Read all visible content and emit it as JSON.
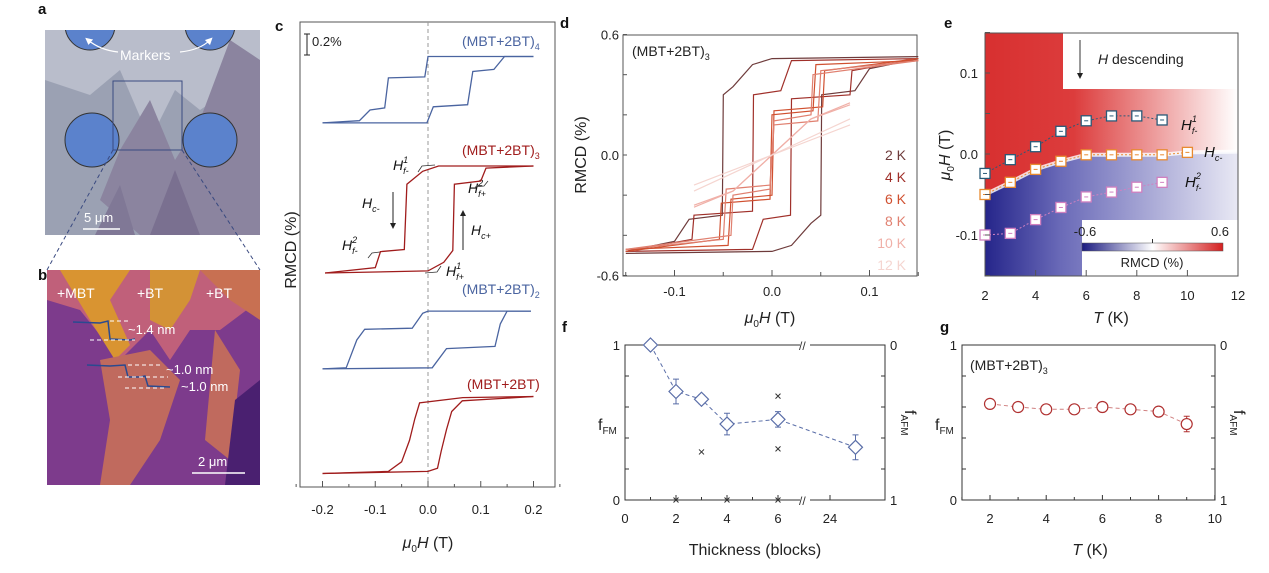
{
  "panels": {
    "a": {
      "letter": "a",
      "markers_label": "Markers",
      "scale_bar": "5 μm",
      "colors": {
        "substrate": "#9ba1b3",
        "marker": "#5b82cc"
      }
    },
    "b": {
      "letter": "b",
      "regions": [
        "+MBT",
        "+BT",
        "+BT"
      ],
      "steps": [
        "~1.4 nm",
        "~1.0 nm",
        "~1.0 nm"
      ],
      "scale_bar": "2 μm",
      "colors": {
        "low": "#7d3b8c",
        "high": "#d99431"
      }
    },
    "c": {
      "letter": "c"
    },
    "d": {
      "letter": "d"
    },
    "e": {
      "letter": "e"
    },
    "f": {
      "letter": "f"
    },
    "g": {
      "letter": "g"
    }
  },
  "chart_data": [
    {
      "id": "c",
      "type": "line",
      "xlabel_pre": "μ",
      "xlabel_sub": "0",
      "xlabel_post": "H (T)",
      "ylabel": "RMCD (%)",
      "scale_bar": "0.2%",
      "xlim": [
        -0.25,
        0.25
      ],
      "xticks": [
        "-0.2",
        "-0.1",
        "0.0",
        "0.1",
        "0.2"
      ],
      "annotations": {
        "hf1m": "H",
        "hf1m_sup": "1",
        "hf1m_sub": "f-",
        "hf2m": "H",
        "hf2m_sup": "2",
        "hf2m_sub": "f-",
        "hf1p": "H",
        "hf1p_sup": "1",
        "hf1p_sub": "f+",
        "hf2p": "H",
        "hf2p_sup": "2",
        "hf2p_sub": "f+",
        "hcm": "H",
        "hcm_sub": "c-",
        "hcp": "H",
        "hcp_sub": "c+"
      },
      "series": [
        {
          "name": "(MBT+2BT)",
          "subscript": "4",
          "color": "#4a64a0",
          "descending": [
            [
              0.2,
              0.31
            ],
            [
              0.0,
              0.31
            ],
            [
              -0.006,
              0.12
            ],
            [
              -0.075,
              0.11
            ],
            [
              -0.082,
              -0.17
            ],
            [
              -0.11,
              -0.19
            ],
            [
              -0.13,
              -0.29
            ],
            [
              -0.2,
              -0.31
            ]
          ],
          "ascending": [
            [
              -0.2,
              -0.31
            ],
            [
              -0.002,
              -0.31
            ],
            [
              0.01,
              -0.16
            ],
            [
              0.075,
              -0.14
            ],
            [
              0.085,
              0.17
            ],
            [
              0.125,
              0.19
            ],
            [
              0.145,
              0.31
            ],
            [
              0.2,
              0.31
            ]
          ]
        },
        {
          "name": "(MBT+2BT)",
          "subscript": "3",
          "color": "#a01c1c",
          "descending": [
            [
              0.2,
              0.5
            ],
            [
              0.02,
              0.5
            ],
            [
              -0.01,
              0.45
            ],
            [
              -0.04,
              0.33
            ],
            [
              -0.045,
              -0.28
            ],
            [
              -0.09,
              -0.3
            ],
            [
              -0.1,
              -0.45
            ],
            [
              -0.195,
              -0.5
            ]
          ],
          "ascending": [
            [
              -0.195,
              -0.5
            ],
            [
              0.0,
              -0.48
            ],
            [
              0.03,
              -0.4
            ],
            [
              0.047,
              -0.29
            ],
            [
              0.05,
              0.33
            ],
            [
              0.1,
              0.36
            ],
            [
              0.11,
              0.48
            ],
            [
              0.2,
              0.5
            ]
          ]
        },
        {
          "name": "(MBT+2BT)",
          "subscript": "2",
          "color": "#4a64a0",
          "descending": [
            [
              0.195,
              0.27
            ],
            [
              0.0,
              0.27
            ],
            [
              -0.01,
              0.25
            ],
            [
              -0.03,
              0.11
            ],
            [
              -0.12,
              0.1
            ],
            [
              -0.135,
              0.0
            ],
            [
              -0.155,
              -0.26
            ],
            [
              -0.2,
              -0.27
            ]
          ],
          "ascending": [
            [
              -0.2,
              -0.27
            ],
            [
              0.008,
              -0.26
            ],
            [
              0.035,
              -0.08
            ],
            [
              0.127,
              -0.06
            ],
            [
              0.137,
              0.15
            ],
            [
              0.15,
              0.27
            ],
            [
              0.195,
              0.27
            ]
          ]
        },
        {
          "name": "(MBT+2BT)",
          "subscript": "",
          "color": "#a01c1c",
          "descending": [
            [
              0.2,
              0.36
            ],
            [
              0.066,
              0.35
            ],
            [
              -0.016,
              0.3
            ],
            [
              -0.025,
              0.15
            ],
            [
              -0.035,
              -0.05
            ],
            [
              -0.05,
              -0.25
            ],
            [
              -0.075,
              -0.34
            ],
            [
              -0.2,
              -0.36
            ]
          ],
          "ascending": [
            [
              -0.2,
              -0.36
            ],
            [
              0.0,
              -0.34
            ],
            [
              0.018,
              -0.31
            ],
            [
              0.025,
              -0.15
            ],
            [
              0.035,
              0.05
            ],
            [
              0.045,
              0.22
            ],
            [
              0.065,
              0.32
            ],
            [
              0.2,
              0.36
            ]
          ]
        }
      ]
    },
    {
      "id": "d",
      "type": "line",
      "title": "(MBT+2BT)",
      "title_sub": "3",
      "xlabel_pre": "μ",
      "xlabel_sub": "0",
      "xlabel_post": "H (T)",
      "ylabel": "RMCD (%)",
      "xlim": [
        -0.15,
        0.15
      ],
      "ylim": [
        -0.6,
        0.6
      ],
      "xticks": [
        "-0.1",
        "0.0",
        "0.1"
      ],
      "yticks": [
        "0.6",
        "0.0",
        "-0.6"
      ],
      "series": [
        {
          "name": "2 K",
          "color": "#6e3b3b",
          "descending": [
            [
              0.15,
              0.49
            ],
            [
              0.0,
              0.48
            ],
            [
              -0.02,
              0.45
            ],
            [
              -0.04,
              0.34
            ],
            [
              -0.05,
              0.3
            ],
            [
              -0.051,
              -0.3
            ],
            [
              -0.085,
              -0.32
            ],
            [
              -0.1,
              -0.43
            ],
            [
              -0.15,
              -0.48
            ]
          ]
        },
        {
          "name": "4 K",
          "color": "#a0302a",
          "descending": [
            [
              0.15,
              0.48
            ],
            [
              0.02,
              0.47
            ],
            [
              0.009,
              0.32
            ],
            [
              -0.019,
              0.3
            ],
            [
              -0.02,
              -0.28
            ],
            [
              -0.08,
              -0.3
            ],
            [
              -0.082,
              -0.42
            ],
            [
              -0.15,
              -0.48
            ]
          ]
        },
        {
          "name": "6 K",
          "color": "#d05030",
          "descending": [
            [
              0.15,
              0.47
            ],
            [
              0.045,
              0.45
            ],
            [
              0.042,
              0.22
            ],
            [
              0.0,
              0.2
            ],
            [
              -0.002,
              -0.22
            ],
            [
              -0.052,
              -0.24
            ],
            [
              -0.054,
              -0.42
            ],
            [
              -0.15,
              -0.48
            ]
          ]
        },
        {
          "name": "8 K",
          "color": "#e08070",
          "descending": [
            [
              0.15,
              0.47
            ],
            [
              0.05,
              0.42
            ],
            [
              0.047,
              0.17
            ],
            [
              0.002,
              0.15
            ],
            [
              -0.002,
              -0.17
            ],
            [
              -0.04,
              -0.2
            ],
            [
              -0.042,
              -0.4
            ],
            [
              -0.15,
              -0.47
            ]
          ]
        },
        {
          "name": "10 K",
          "color": "#f0b0a8",
          "descending": [
            [
              0.08,
              0.25
            ],
            [
              0.04,
              0.18
            ],
            [
              0.0,
              0.0
            ],
            [
              -0.04,
              -0.18
            ],
            [
              -0.08,
              -0.26
            ]
          ]
        },
        {
          "name": "12 K",
          "color": "#f5d5d0",
          "descending": [
            [
              0.08,
              0.15
            ],
            [
              0.0,
              0.0
            ],
            [
              -0.08,
              -0.18
            ]
          ]
        }
      ]
    },
    {
      "id": "e",
      "type": "heatmap",
      "annotation": "H",
      "annotation_rest": " descending",
      "xlabel": "T",
      "xlabel_unit": " (K)",
      "ylabel_pre": "μ",
      "ylabel_sub": "0",
      "ylabel_post": "H (T)",
      "xlim": [
        2,
        12
      ],
      "ylim": [
        -0.15,
        0.15
      ],
      "xticks": [
        "2",
        "4",
        "6",
        "8",
        "10",
        "12"
      ],
      "yticks": [
        "0.1",
        "0.0",
        "-0.1"
      ],
      "colorbar": {
        "label": "RMCD (%)",
        "min": "-0.6",
        "max": "0.6",
        "colors": [
          "#1a1a80",
          "#ffffff",
          "#d42020"
        ]
      },
      "series": [
        {
          "name": "H",
          "sup": "1",
          "sub": "f-",
          "color": "#2a5a78",
          "T": [
            2,
            3,
            4,
            5,
            6,
            7,
            8,
            9
          ],
          "H": [
            -0.024,
            -0.007,
            0.009,
            0.028,
            0.041,
            0.047,
            0.047,
            0.042
          ]
        },
        {
          "name": "H",
          "sup": "",
          "sub": "c-",
          "color": "#e88a30",
          "T": [
            2,
            3,
            4,
            5,
            6,
            7,
            8,
            9,
            10
          ],
          "H": [
            -0.05,
            -0.035,
            -0.019,
            -0.009,
            -0.001,
            -0.001,
            -0.001,
            -0.001,
            0.002
          ]
        },
        {
          "name": "H",
          "sup": "2",
          "sub": "f-",
          "color": "#d080c0",
          "T": [
            2,
            3,
            4,
            5,
            6,
            7,
            8,
            9
          ],
          "H": [
            -0.1,
            -0.098,
            -0.081,
            -0.066,
            -0.053,
            -0.047,
            -0.041,
            -0.035
          ]
        }
      ]
    },
    {
      "id": "f",
      "type": "scatter",
      "xlabel": "Thickness (blocks)",
      "ylabel": "f",
      "ylabel_sub": "FM",
      "y2label": "f",
      "y2label_sub": "AFM",
      "ylim": [
        0,
        1
      ],
      "y2lim": [
        1,
        0
      ],
      "xticks": [
        "0",
        "2",
        "4",
        "6",
        "24"
      ],
      "yticks": [
        "1",
        "0"
      ],
      "y2ticks": [
        "0",
        "1"
      ],
      "x_axis_break": true,
      "series": [
        {
          "marker": "diamond",
          "color": "#5a6ea8",
          "x": [
            1,
            2,
            3,
            4,
            6,
            25
          ],
          "y": [
            1.0,
            0.7,
            0.65,
            0.49,
            0.52,
            0.34
          ],
          "err": [
            0,
            0.08,
            0.03,
            0.07,
            0.05,
            0.08
          ]
        },
        {
          "marker": "cross",
          "color": "#333333",
          "x": [
            2,
            3,
            4,
            6,
            6,
            6
          ],
          "y": [
            0,
            0.31,
            0,
            0.67,
            0.33,
            0
          ]
        }
      ]
    },
    {
      "id": "g",
      "type": "scatter",
      "title": "(MBT+2BT)",
      "title_sub": "3",
      "xlabel": "T",
      "xlabel_unit": " (K)",
      "ylabel": "f",
      "ylabel_sub": "FM",
      "y2label": "f",
      "y2label_sub": "AFM",
      "xlim": [
        1,
        10
      ],
      "ylim": [
        0,
        1
      ],
      "y2lim": [
        1,
        0
      ],
      "xticks": [
        "2",
        "4",
        "6",
        "8",
        "10"
      ],
      "yticks": [
        "1",
        "0"
      ],
      "y2ticks": [
        "0",
        "1"
      ],
      "series": [
        {
          "marker": "circle",
          "color": "#b03030",
          "x": [
            2,
            3,
            4,
            5,
            6,
            7,
            8,
            9
          ],
          "y": [
            0.62,
            0.6,
            0.585,
            0.585,
            0.6,
            0.585,
            0.57,
            0.49
          ],
          "err": [
            0.02,
            0.015,
            0.03,
            0.02,
            0.01,
            0.02,
            0.025,
            0.05
          ]
        }
      ]
    }
  ]
}
